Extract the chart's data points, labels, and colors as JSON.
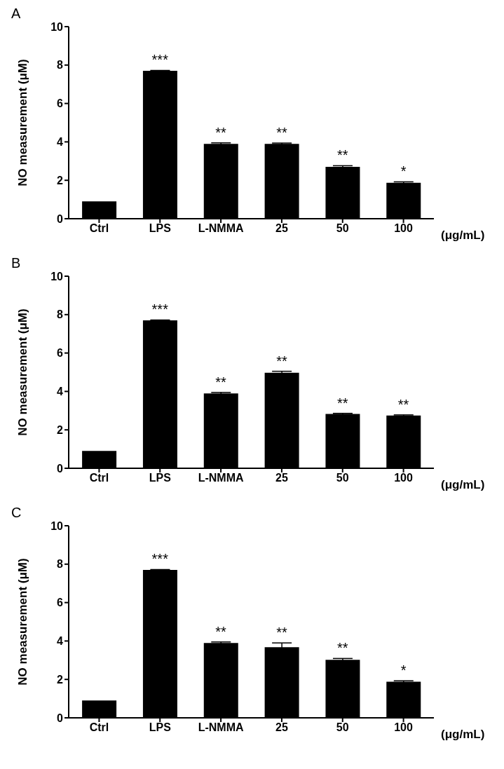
{
  "chart_data": [
    {
      "type": "bar",
      "title": "A",
      "categories": [
        "Ctrl",
        "LPS",
        "L-NMMA",
        "25",
        "50",
        "100"
      ],
      "values": [
        0.9,
        7.7,
        3.9,
        3.9,
        2.7,
        1.87
      ],
      "errors": [
        null,
        0.02,
        0.05,
        0.04,
        0.06,
        0.05
      ],
      "color": "#000000",
      "xlabel": "(μg/mL)",
      "ylabel": "NO measurement (μM)",
      "ylim": [
        0,
        10
      ],
      "yticks": [
        0,
        2,
        4,
        6,
        8,
        10
      ],
      "grid": false,
      "legend": false,
      "annotations": [
        {
          "text": "***",
          "x": "LPS",
          "y": 7.7
        },
        {
          "text": "**",
          "x": "L-NMMA",
          "y": 3.9
        },
        {
          "text": "**",
          "x": "25",
          "y": 3.9
        },
        {
          "text": "**",
          "x": "50",
          "y": 2.7
        },
        {
          "text": "*",
          "x": "100",
          "y": 1.87
        }
      ]
    },
    {
      "type": "bar",
      "title": "B",
      "categories": [
        "Ctrl",
        "LPS",
        "L-NMMA",
        "25",
        "50",
        "100"
      ],
      "values": [
        0.9,
        7.7,
        3.9,
        4.97,
        2.83,
        2.75
      ],
      "errors": [
        null,
        0.02,
        0.05,
        0.08,
        0.03,
        0.03
      ],
      "color": "#000000",
      "xlabel": "(μg/mL)",
      "ylabel": "NO measurement (μM)",
      "ylim": [
        0,
        10
      ],
      "yticks": [
        0,
        2,
        4,
        6,
        8,
        10
      ],
      "grid": false,
      "legend": false,
      "annotations": [
        {
          "text": "***",
          "x": "LPS",
          "y": 7.7
        },
        {
          "text": "**",
          "x": "L-NMMA",
          "y": 3.9
        },
        {
          "text": "**",
          "x": "25",
          "y": 4.97
        },
        {
          "text": "**",
          "x": "50",
          "y": 2.83
        },
        {
          "text": "**",
          "x": "100",
          "y": 2.75
        }
      ]
    },
    {
      "type": "bar",
      "title": "C",
      "categories": [
        "Ctrl",
        "LPS",
        "L-NMMA",
        "25",
        "50",
        "100"
      ],
      "values": [
        0.9,
        7.7,
        3.9,
        3.68,
        3.02,
        1.88
      ],
      "errors": [
        null,
        0.02,
        0.05,
        0.22,
        0.07,
        0.05
      ],
      "color": "#000000",
      "xlabel": "(μg/mL)",
      "ylabel": "NO measurement (μM)",
      "ylim": [
        0,
        10
      ],
      "yticks": [
        0,
        2,
        4,
        6,
        8,
        10
      ],
      "grid": false,
      "legend": false,
      "annotations": [
        {
          "text": "***",
          "x": "LPS",
          "y": 7.7
        },
        {
          "text": "**",
          "x": "L-NMMA",
          "y": 3.9
        },
        {
          "text": "**",
          "x": "25",
          "y": 3.68
        },
        {
          "text": "**",
          "x": "50",
          "y": 3.02
        },
        {
          "text": "*",
          "x": "100",
          "y": 1.88
        }
      ]
    }
  ]
}
